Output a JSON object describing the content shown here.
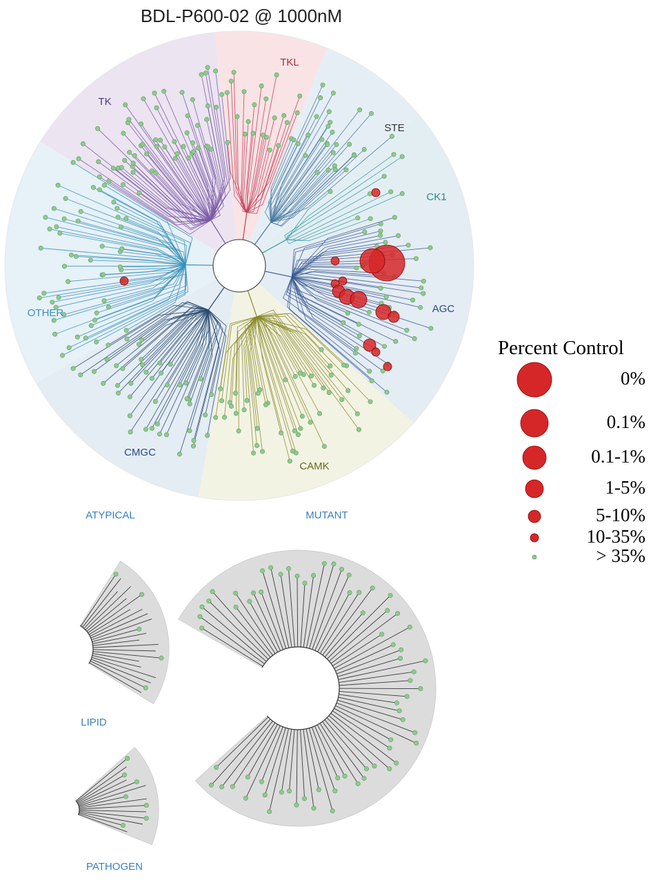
{
  "title": "BDL-P600-02 @ 1000nM",
  "colors": {
    "hit": "#d62728",
    "hit_stroke": "#8b0000",
    "non_hit": "#8fc98f",
    "non_hit_stroke": "#5f9f5f",
    "branch_default": "#6b6b6b"
  },
  "main_tree": {
    "groups": [
      {
        "id": "TK",
        "label": "TK",
        "fill": "#ece4f1",
        "label_color": "#4b3b7a",
        "branch": "#7a5aa6"
      },
      {
        "id": "TKL",
        "label": "TKL",
        "fill": "#f9e3e5",
        "label_color": "#a33140",
        "branch": "#c0405a"
      },
      {
        "id": "STE",
        "label": "STE",
        "fill": "#e6eef5",
        "label_color": "#333333",
        "branch": "#4a7aa0"
      },
      {
        "id": "CK1",
        "label": "CK1",
        "fill": "#e3eef3",
        "label_color": "#2b8a8a",
        "branch": "#3aa0a8"
      },
      {
        "id": "AGC",
        "label": "AGC",
        "fill": "#e4ecf4",
        "label_color": "#2a4a80",
        "branch": "#3a5a90"
      },
      {
        "id": "CAMK",
        "label": "CAMK",
        "fill": "#f3f3e4",
        "label_color": "#6b6b1a",
        "branch": "#8a8a2a"
      },
      {
        "id": "CMGC",
        "label": "CMGC",
        "fill": "#e4ecf4",
        "label_color": "#2a4a80",
        "branch": "#2a4a70"
      },
      {
        "id": "OTHER",
        "label": "OTHER",
        "fill": "#e6f1f8",
        "label_color": "#3a90b8",
        "branch": "#3a90b8"
      }
    ]
  },
  "sub_trees": [
    {
      "id": "ATYPICAL",
      "label": "ATYPICAL"
    },
    {
      "id": "MUTANT",
      "label": "MUTANT"
    },
    {
      "id": "LIPID",
      "label": "LIPID"
    },
    {
      "id": "PATHOGEN",
      "label": "PATHOGEN"
    }
  ],
  "legend": {
    "title": "Percent Control",
    "items": [
      {
        "label": "0%",
        "size_level": 7
      },
      {
        "label": "0.1%",
        "size_level": 6
      },
      {
        "label": "0.1-1%",
        "size_level": 5
      },
      {
        "label": "1-5%",
        "size_level": 4
      },
      {
        "label": "5-10%",
        "size_level": 3
      },
      {
        "label": "10-35%",
        "size_level": 2
      },
      {
        "label": "> 35%",
        "size_level": 1
      }
    ]
  }
}
